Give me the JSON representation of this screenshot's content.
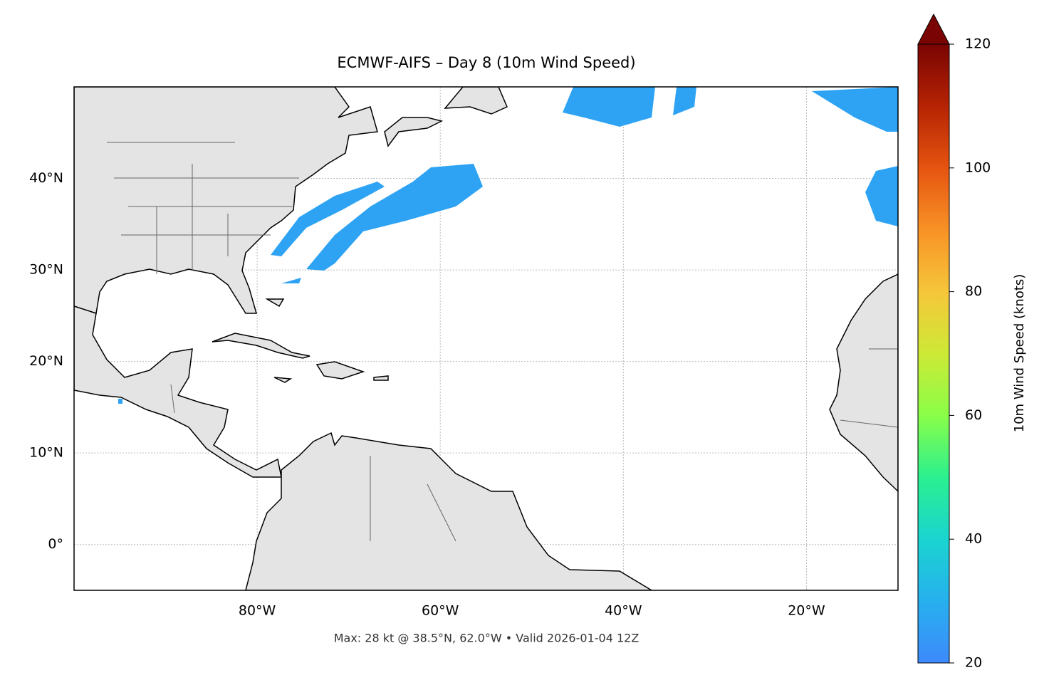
{
  "chart_data": {
    "type": "map",
    "title": "ECMWF-AIFS – Day 8 (10m Wind Speed)",
    "annotation": "Max: 28 kt @ 38.5°N, 62.0°W • Valid 2026-01-04 12Z",
    "xlim": [
      -100,
      -10
    ],
    "ylim": [
      -5,
      50
    ],
    "xticks": [
      {
        "value": -80,
        "label": "80°W"
      },
      {
        "value": -60,
        "label": "60°W"
      },
      {
        "value": -40,
        "label": "40°W"
      },
      {
        "value": -20,
        "label": "20°W"
      }
    ],
    "yticks": [
      {
        "value": 0,
        "label": "0°"
      },
      {
        "value": 10,
        "label": "10°N"
      },
      {
        "value": 20,
        "label": "20°N"
      },
      {
        "value": 30,
        "label": "30°N"
      },
      {
        "value": 40,
        "label": "40°N"
      }
    ],
    "grid": true,
    "colorbar": {
      "label": "10m Wind Speed (knots)",
      "lim": [
        20,
        120
      ],
      "ticks": [
        20,
        40,
        60,
        80,
        100,
        120
      ]
    }
  }
}
